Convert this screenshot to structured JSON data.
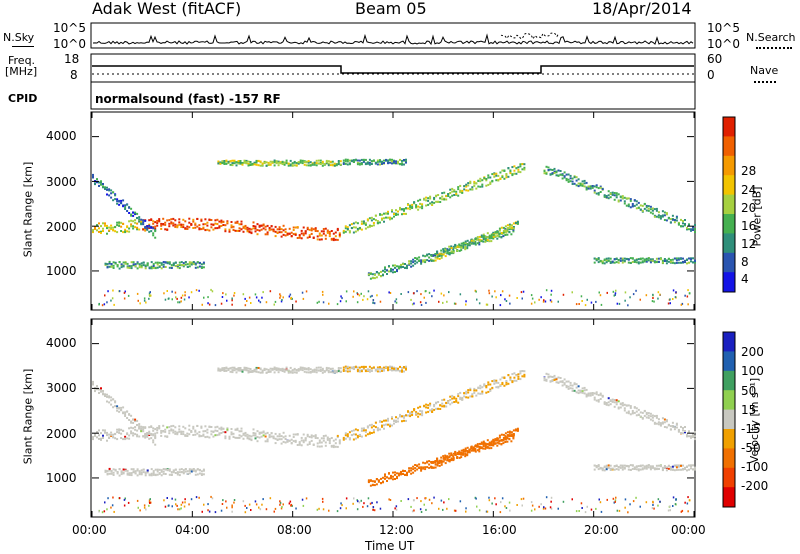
{
  "header": {
    "station": "Adak West (fitACF)",
    "beam": "Beam 05",
    "date": "18/Apr/2014"
  },
  "side_labels": {
    "nsky": "N.Sky",
    "freq": "Freq.",
    "freq_unit": "[MHz]",
    "cpid": "CPID",
    "nsearch": "N.Search",
    "nave": "Nave"
  },
  "noise_axis": {
    "left_top": "10^5",
    "left_bottom": "10^0",
    "right_top": "10^5",
    "right_bottom": "10^0"
  },
  "freq_axis": {
    "top": "18",
    "bottom": "8",
    "nave_top": "60",
    "nave_bottom": "0"
  },
  "cpid_text": "normalsound (fast) -157 RF",
  "colors": {
    "power": [
      "#1414e6",
      "#2a55b0",
      "#2f8f7a",
      "#45b050",
      "#a6d040",
      "#f2c400",
      "#f59a00",
      "#f06000",
      "#e02000"
    ],
    "velocity": [
      "#e00000",
      "#f04000",
      "#f07000",
      "#f0a000",
      "#c8c8c0",
      "#90d050",
      "#40a060",
      "#2060b0",
      "#1a20c0"
    ]
  },
  "chart_data": [
    {
      "type": "heatmap",
      "title": "",
      "ylabel": "Slant Range [km]",
      "ylim": [
        150,
        4550
      ],
      "yticks": [
        "1000",
        "2000",
        "3000",
        "4000"
      ],
      "xlim": [
        "00:00",
        "24:00"
      ],
      "colorbar": {
        "label": "Power [dB]",
        "ticks": [
          "4",
          "8",
          "12",
          "16",
          "20",
          "24",
          "28"
        ],
        "range": [
          0,
          30
        ]
      },
      "grid": false
    },
    {
      "type": "heatmap",
      "title": "",
      "ylabel": "Slant Range [km]",
      "ylim": [
        150,
        4550
      ],
      "yticks": [
        "1000",
        "2000",
        "3000",
        "4000"
      ],
      "xlim": [
        "00:00",
        "24:00"
      ],
      "xticks": [
        "00:00",
        "04:00",
        "08:00",
        "12:00",
        "16:00",
        "20:00",
        "00:00"
      ],
      "xlabel": "Time UT",
      "colorbar": {
        "label": "Velocity [m s⁻¹]",
        "ticks": [
          "200",
          "100",
          "50",
          "15",
          "-15",
          "-50",
          "-100",
          "-200"
        ],
        "range": [
          -250,
          250
        ]
      },
      "grid": false
    }
  ]
}
